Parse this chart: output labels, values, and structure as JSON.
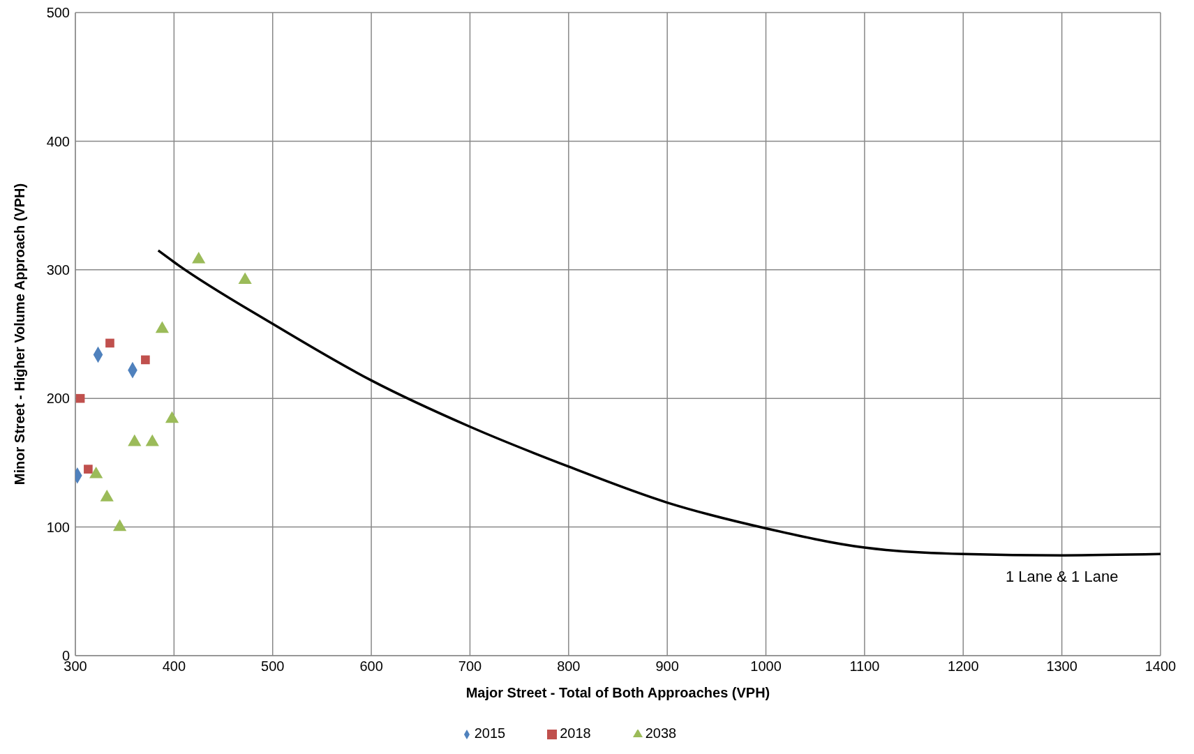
{
  "chart_data": {
    "type": "scatter",
    "xlabel": "Major Street - Total of Both Approaches (VPH)",
    "ylabel": "Minor Street - Higher Volume Approach (VPH)",
    "xlim": [
      300,
      1400
    ],
    "xticks": [
      300,
      400,
      500,
      600,
      700,
      800,
      900,
      1000,
      1100,
      1200,
      1300,
      1400
    ],
    "ylim": [
      0,
      500
    ],
    "yticks": [
      0,
      100,
      200,
      300,
      400,
      500
    ],
    "grid": true,
    "legend": "bottom",
    "annotations": [
      {
        "text": "1 Lane & 1 Lane",
        "x": 1300,
        "y": 78
      }
    ],
    "series": [
      {
        "name": "2015",
        "color": "#4f81bd",
        "marker": "diamond",
        "x": [
          302,
          323,
          358
        ],
        "values": [
          140,
          234,
          222
        ]
      },
      {
        "name": "2018",
        "color": "#c0504d",
        "marker": "square",
        "x": [
          305,
          313,
          335,
          371
        ],
        "values": [
          200,
          145,
          243,
          230
        ]
      },
      {
        "name": "2038",
        "color": "#9bbb59",
        "marker": "triangle",
        "x": [
          321,
          332,
          345,
          360,
          378,
          398,
          388,
          425,
          472
        ],
        "values": [
          141,
          123,
          100,
          166,
          166,
          184,
          254,
          308,
          292
        ]
      },
      {
        "type": "line",
        "color": "#000000",
        "marker": "none",
        "x": [
          384,
          400,
          500,
          600,
          700,
          800,
          900,
          1000,
          1100,
          1200,
          1300,
          1400
        ],
        "values": [
          315,
          306,
          258,
          214,
          178,
          147,
          119,
          99,
          84,
          79,
          78,
          79
        ]
      }
    ]
  }
}
